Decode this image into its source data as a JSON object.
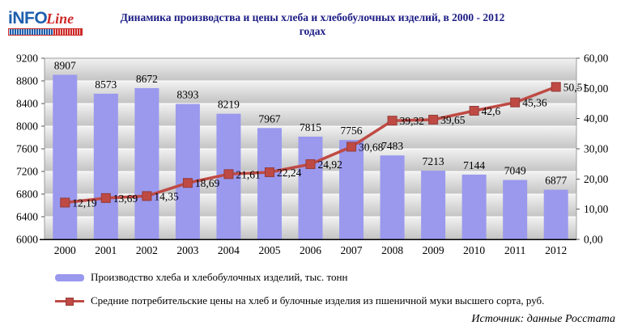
{
  "logo": {
    "part1": "iNFO",
    "part2": "Line"
  },
  "title": {
    "line1": "Динамика производства и цены хлеба и хлебобулочных изделий, в 2000 - 2012",
    "line2": "годах"
  },
  "source": "Источник: данные Росстата",
  "colors": {
    "bar": "#9a99ee",
    "line": "#bf4a44",
    "marker_border": "#953c38",
    "title_text": "#1b1b85",
    "grid_band_light": "#f2f2f2",
    "grid_band_dark": "#c3c3c3",
    "gridline": "#ffffff",
    "plot_border": "#9c9c9c",
    "axis_line": "#000000",
    "logo_blue": "#1d5fad",
    "logo_red": "#cc2a28"
  },
  "legend": [
    {
      "label": "Производство хлеба и хлебобулочных изделий, тыс. тонн"
    },
    {
      "label": "Средние потребительские цены на хлеб и булочные изделия из пшеничной муки высшего сорта, руб."
    }
  ],
  "chart_data": {
    "type": "bar",
    "combo": "bar+line",
    "categories": [
      "2000",
      "2001",
      "2002",
      "2003",
      "2004",
      "2005",
      "2006",
      "2007",
      "2008",
      "2009",
      "2010",
      "2011",
      "2012"
    ],
    "series": [
      {
        "name": "Производство хлеба и хлебобулочных изделий, тыс. тонн",
        "type": "bar",
        "axis": "left",
        "values": [
          8907,
          8573,
          8672,
          8393,
          8219,
          7967,
          7815,
          7756,
          7483,
          7213,
          7144,
          7049,
          6877
        ]
      },
      {
        "name": "Средние потребительские цены на хлеб и булочные изделия из пшеничной муки высшего сорта, руб.",
        "type": "line",
        "axis": "right",
        "values": [
          12.19,
          13.69,
          14.35,
          18.69,
          21.61,
          22.24,
          24.92,
          30.68,
          39.32,
          39.65,
          42.6,
          45.36,
          50.51
        ],
        "labels": [
          "12,19",
          "13,69",
          "14,35",
          "18,69",
          "21,61",
          "22,24",
          "24,92",
          "30,68",
          "39,32",
          "39,65",
          "42,6",
          "45,36",
          "50,51"
        ]
      }
    ],
    "left_axis": {
      "min": 6000,
      "max": 9200,
      "step": 400,
      "tick_labels": [
        "9200",
        "8800",
        "8400",
        "8000",
        "7600",
        "7200",
        "6800",
        "6400",
        "6000"
      ]
    },
    "right_axis": {
      "min": 0,
      "max": 60,
      "step": 10,
      "tick_labels": [
        "60,00",
        "50,00",
        "40,00",
        "30,00",
        "20,00",
        "10,00",
        "0,00"
      ]
    },
    "grid": true,
    "legend_position": "bottom"
  }
}
